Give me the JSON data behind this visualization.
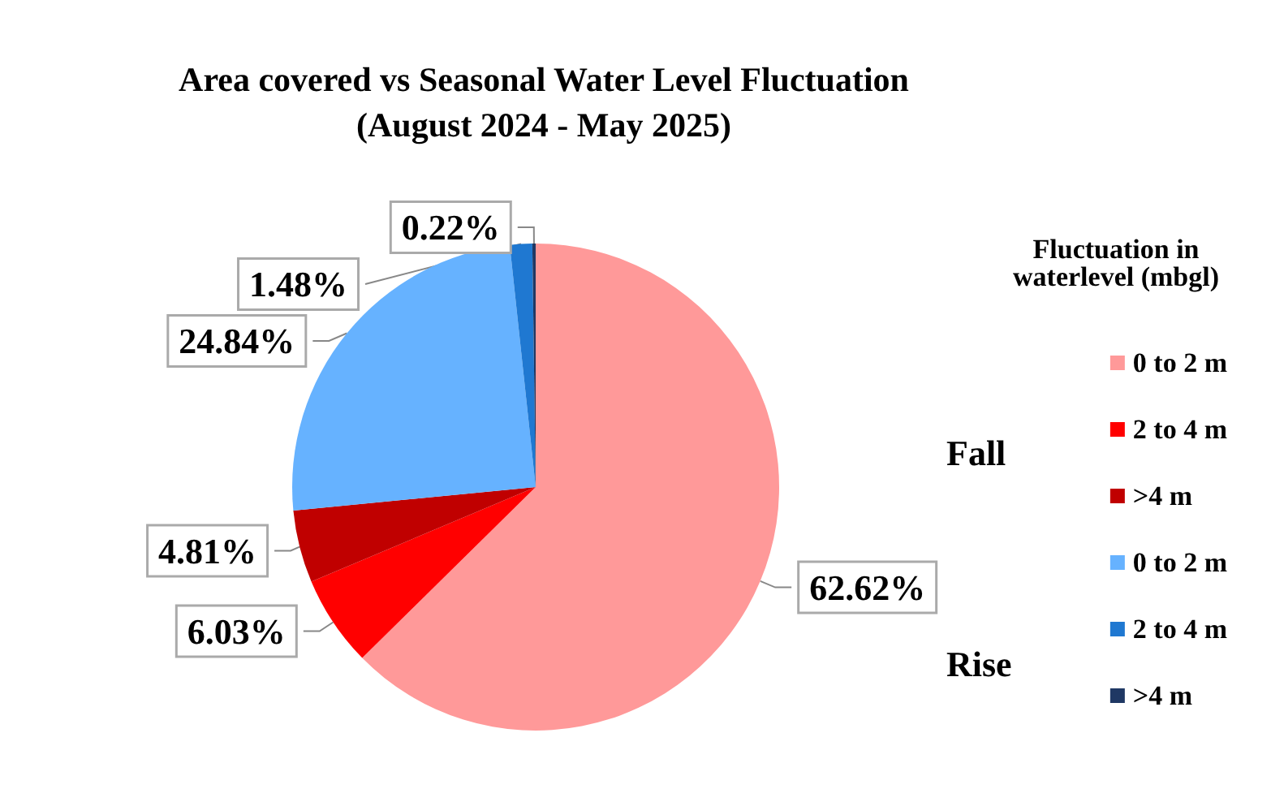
{
  "chart_data": {
    "type": "pie",
    "title": "Area covered vs Seasonal Water Level Fluctuation\n(August 2024 - May 2025)",
    "legend_title": "Fluctuation in\nwaterlevel (mbgl)",
    "categories": [
      "0 to 2 m",
      "2 to 4 m",
      ">4 m",
      "0 to 2 m",
      "2 to 4 m",
      ">4 m"
    ],
    "values": [
      62.62,
      6.03,
      4.81,
      24.84,
      1.48,
      0.22
    ],
    "value_labels": [
      "62.62%",
      "6.03%",
      "4.81%",
      "24.84%",
      "1.48%",
      "0.22%"
    ],
    "colors": [
      "#ff9999",
      "#ff0000",
      "#c00000",
      "#66b2ff",
      "#1f78d1",
      "#1f3864"
    ],
    "annotations": [
      "Fall",
      "Rise"
    ],
    "legend": "right"
  }
}
